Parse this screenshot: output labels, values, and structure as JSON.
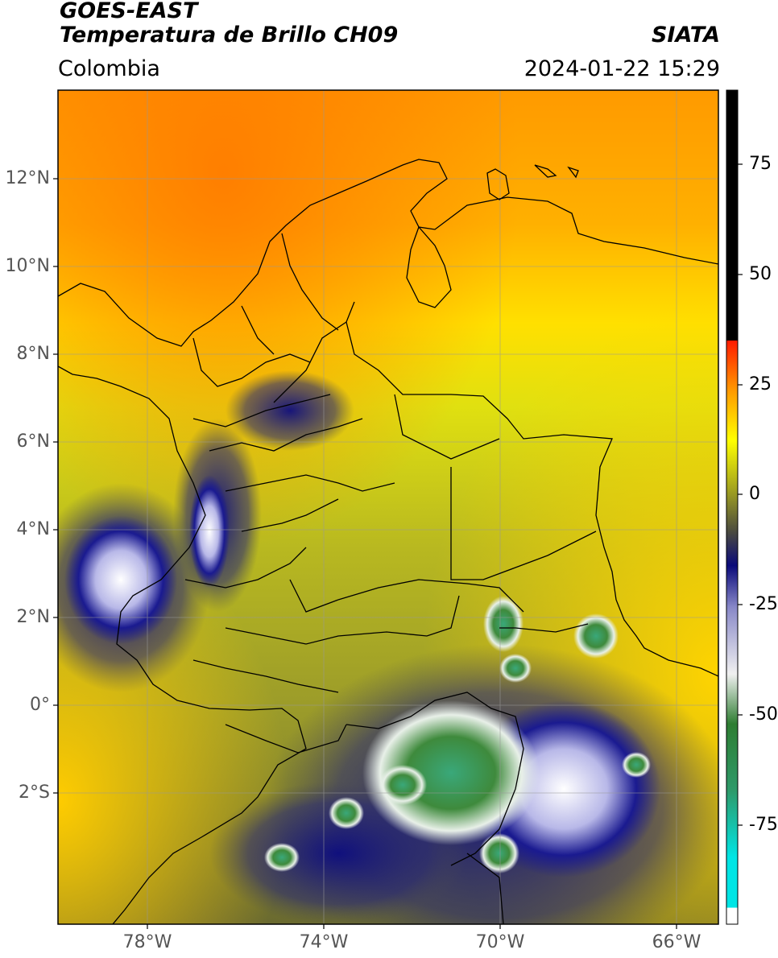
{
  "header": {
    "satellite": "GOES-EAST",
    "product": "Temperatura de Brillo CH09",
    "region": "Colombia",
    "organization": "SIATA",
    "timestamp": "2024-01-22 15:29"
  },
  "axes": {
    "lat_labels": [
      "12°N",
      "10°N",
      "8°N",
      "6°N",
      "4°N",
      "2°N",
      "0°",
      "2°S"
    ],
    "lon_labels": [
      "78°W",
      "74°W",
      "70°W",
      "66°W"
    ]
  },
  "colorbar": {
    "labels": [
      "75",
      "50",
      "25",
      "0",
      "-25",
      "-50",
      "-75"
    ],
    "colors": {
      "black": "#000000",
      "red": "#ff1a00",
      "orange": "#ff9900",
      "yellow": "#ffff00",
      "olive": "#6e6e1e",
      "navy": "#0a0a7a",
      "white": "#ffffff",
      "green": "#2e7d32",
      "cyan": "#00e5e5"
    }
  }
}
